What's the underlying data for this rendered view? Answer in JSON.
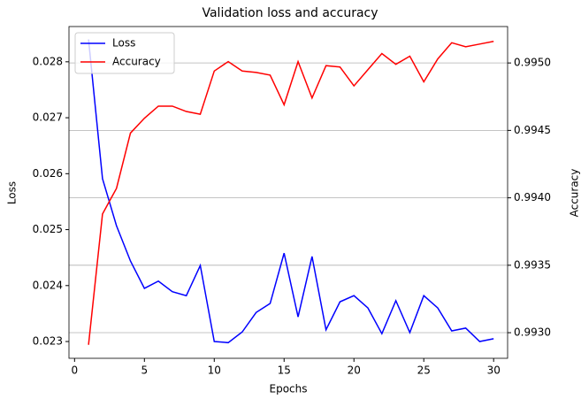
{
  "chart_data": {
    "type": "line",
    "title": "Validation loss and accuracy",
    "x_label": "Epochs",
    "y_label": "Loss",
    "y2_label": "Accuracy",
    "x": [
      1,
      2,
      3,
      4,
      5,
      6,
      7,
      8,
      9,
      10,
      11,
      12,
      13,
      14,
      15,
      16,
      17,
      18,
      19,
      20,
      21,
      22,
      23,
      24,
      25,
      26,
      27,
      28,
      29,
      30
    ],
    "series": [
      {
        "name": "Loss",
        "color": "#0000ff",
        "axis": "y",
        "values": [
          0.0284,
          0.02591,
          0.02507,
          0.02444,
          0.02395,
          0.02408,
          0.02389,
          0.02382,
          0.02436,
          0.023,
          0.02298,
          0.02317,
          0.02352,
          0.02368,
          0.02458,
          0.02344,
          0.02452,
          0.02321,
          0.02371,
          0.02382,
          0.0236,
          0.02314,
          0.02373,
          0.02316,
          0.02382,
          0.0236,
          0.02319,
          0.02324,
          0.023,
          0.02305
        ]
      },
      {
        "name": "Accuracy",
        "color": "#ff0000",
        "axis": "y2",
        "values": [
          0.99291,
          0.99388,
          0.99407,
          0.99448,
          0.99459,
          0.99468,
          0.99468,
          0.99464,
          0.99462,
          0.99494,
          0.99501,
          0.99494,
          0.99493,
          0.99491,
          0.99469,
          0.99501,
          0.99474,
          0.99498,
          0.99497,
          0.99483,
          0.99495,
          0.99507,
          0.99499,
          0.99505,
          0.99486,
          0.99503,
          0.99515,
          0.99512,
          0.99514,
          0.99516
        ]
      }
    ],
    "xlim": [
      -0.4,
      31.0
    ],
    "xticks": [
      0,
      5,
      10,
      15,
      20,
      25,
      30
    ],
    "ylim": [
      0.0227,
      0.02863
    ],
    "yticks": [
      0.023,
      0.024,
      0.025,
      0.026,
      0.027,
      0.028
    ],
    "y2lim": [
      0.99281,
      0.99527
    ],
    "y2ticks": [
      {
        "value": 0.993,
        "label": "0.9930"
      },
      0.9935,
      {
        "value": 0.994,
        "label": "0.9940"
      },
      0.9945,
      {
        "value": 0.995,
        "label": "0.9950"
      }
    ],
    "grid": "y2",
    "legend": "upper left"
  }
}
